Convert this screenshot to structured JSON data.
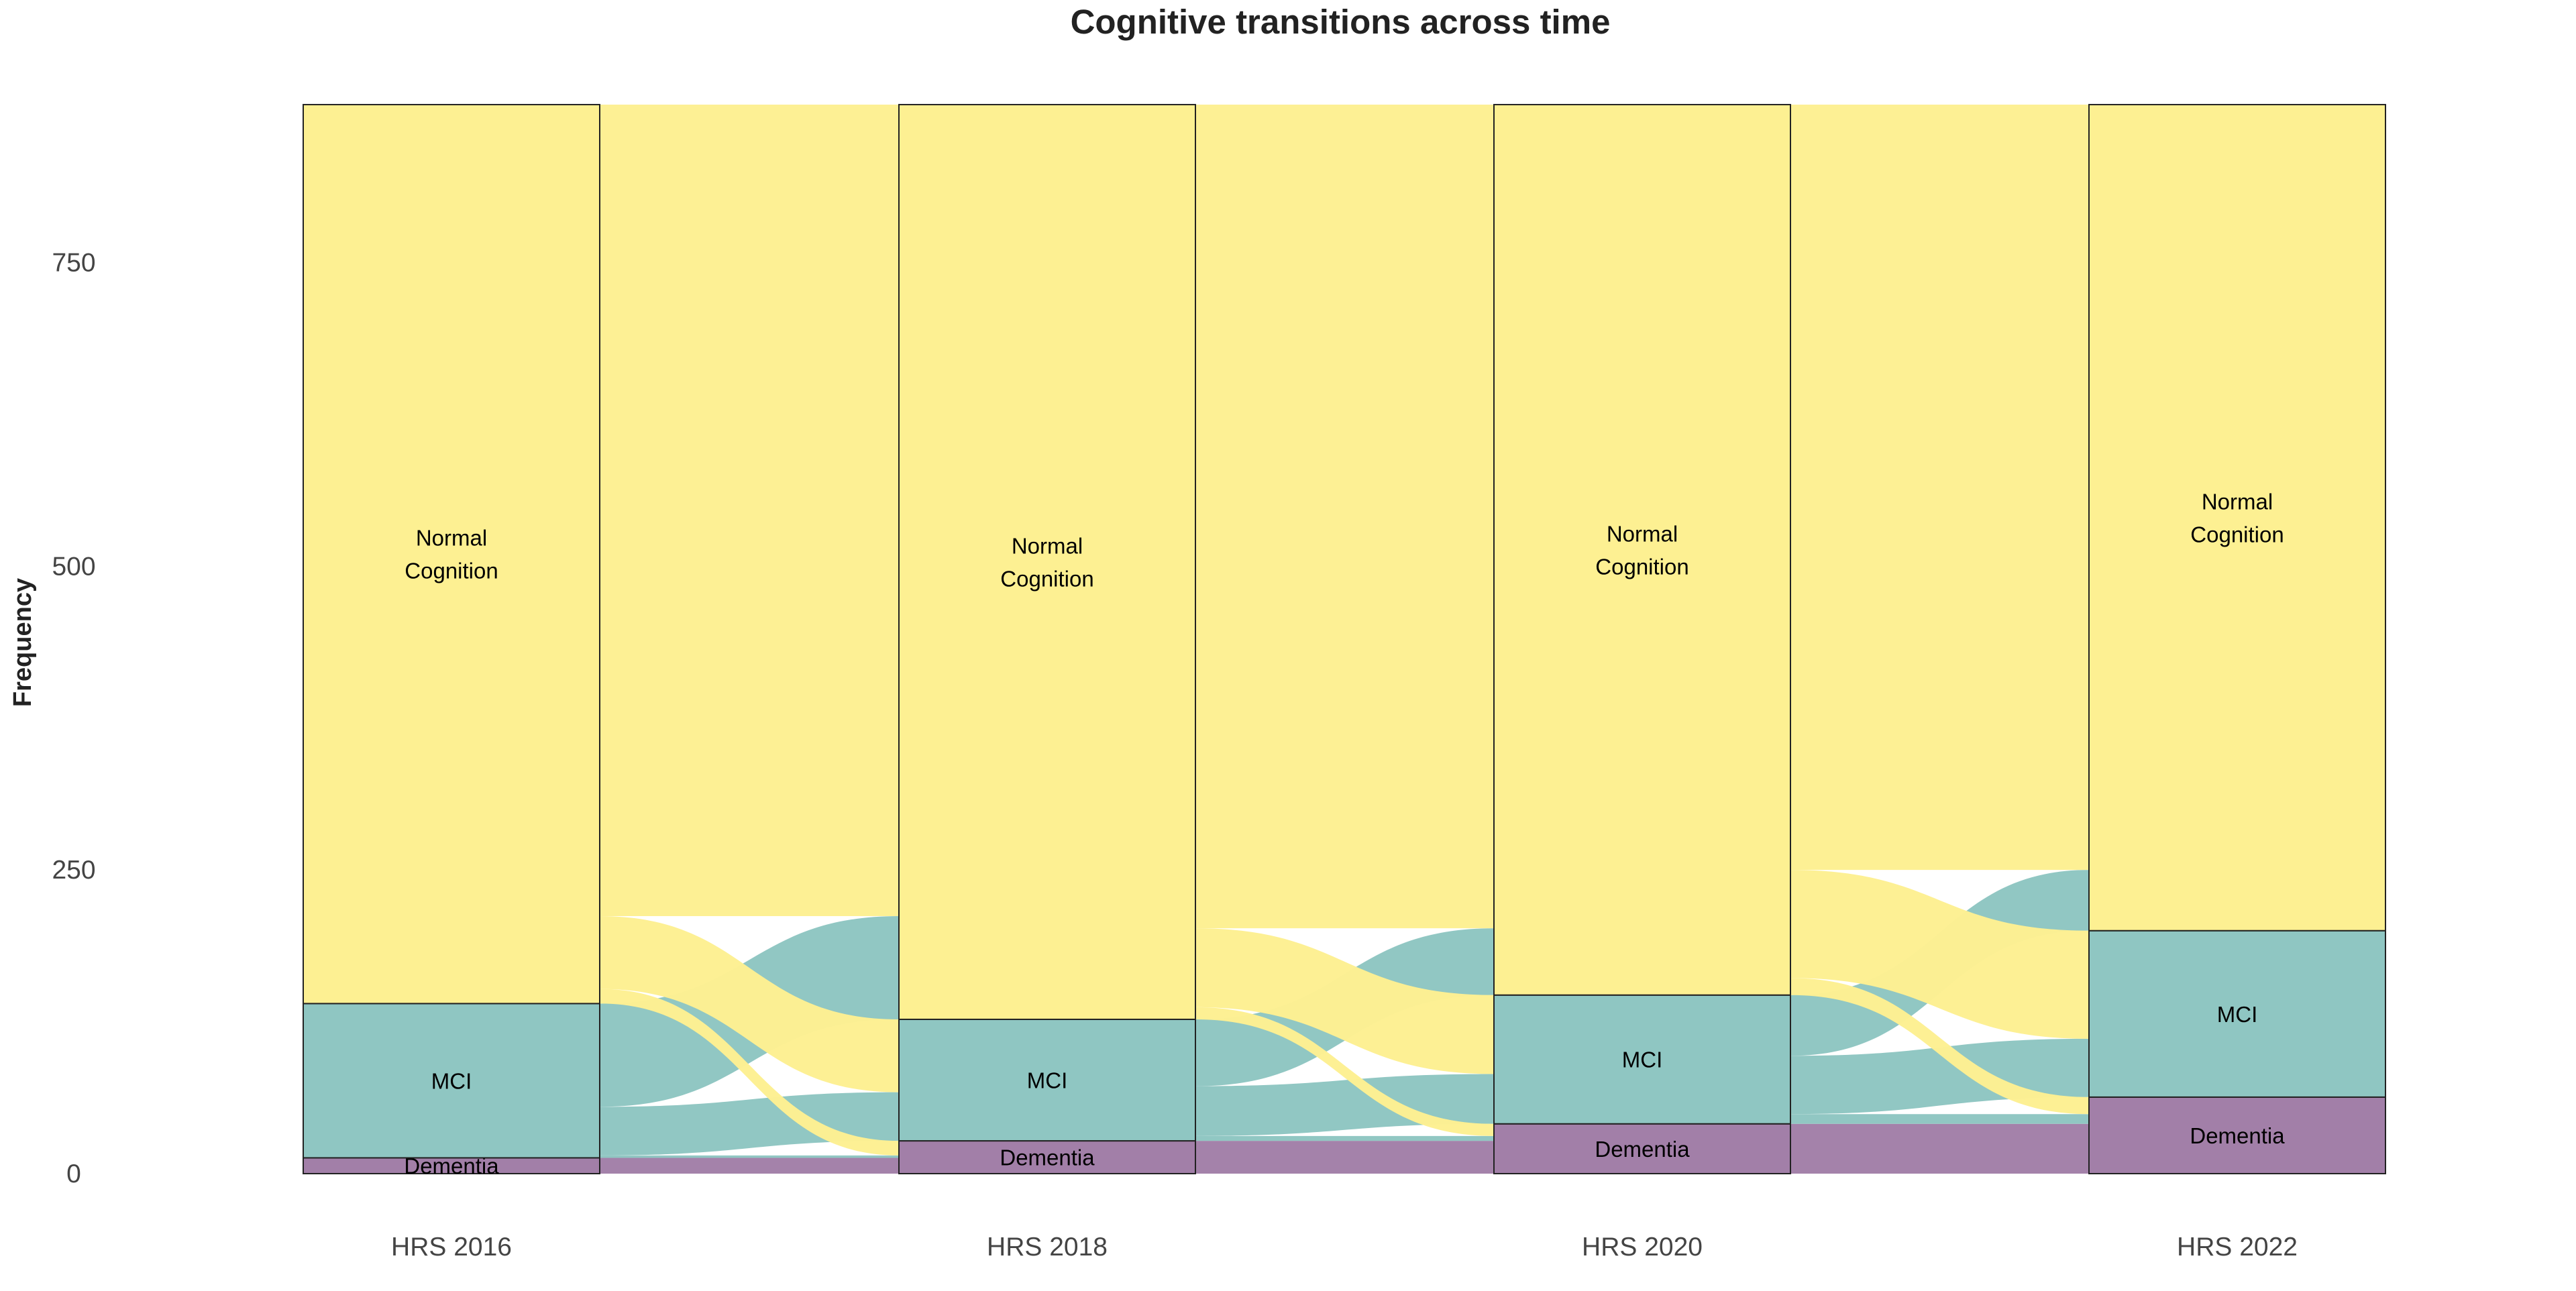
{
  "chart_data": {
    "type": "alluvial",
    "title": "Cognitive transitions across time",
    "xlabel": "",
    "ylabel": "Frequency",
    "ylim": [
      0,
      880
    ],
    "yticks": [
      0,
      250,
      500,
      750
    ],
    "grid": false,
    "legend": "none",
    "categories": [
      "Dementia",
      "MCI",
      "Normal Cognition"
    ],
    "category_labels": {
      "Dementia": "Dementia",
      "MCI": "MCI",
      "Normal Cognition": "Normal\nCognition"
    },
    "colors": {
      "Dementia": "#a27fa8",
      "MCI": "#8fc6c2",
      "Normal Cognition": "#fdf092"
    },
    "waves": [
      "HRS 2016",
      "HRS 2018",
      "HRS 2020",
      "HRS 2022"
    ],
    "strata": [
      {
        "Dementia": 13,
        "MCI": 127,
        "Normal Cognition": 740
      },
      {
        "Dementia": 27,
        "MCI": 100,
        "Normal Cognition": 753
      },
      {
        "Dementia": 41,
        "MCI": 106,
        "Normal Cognition": 733
      },
      {
        "Dementia": 63,
        "MCI": 137,
        "Normal Cognition": 680
      }
    ],
    "flows": [
      [
        {
          "from": "Dementia",
          "to": "Dementia",
          "value": 13
        },
        {
          "from": "MCI",
          "to": "Dementia",
          "value": 2
        },
        {
          "from": "MCI",
          "to": "MCI",
          "value": 40
        },
        {
          "from": "MCI",
          "to": "Normal Cognition",
          "value": 85
        },
        {
          "from": "Normal Cognition",
          "to": "Dementia",
          "value": 12
        },
        {
          "from": "Normal Cognition",
          "to": "MCI",
          "value": 60
        },
        {
          "from": "Normal Cognition",
          "to": "Normal Cognition",
          "value": 668
        }
      ],
      [
        {
          "from": "Dementia",
          "to": "Dementia",
          "value": 27
        },
        {
          "from": "MCI",
          "to": "Dementia",
          "value": 4
        },
        {
          "from": "MCI",
          "to": "MCI",
          "value": 41
        },
        {
          "from": "MCI",
          "to": "Normal Cognition",
          "value": 55
        },
        {
          "from": "Normal Cognition",
          "to": "Dementia",
          "value": 10
        },
        {
          "from": "Normal Cognition",
          "to": "MCI",
          "value": 65
        },
        {
          "from": "Normal Cognition",
          "to": "Normal Cognition",
          "value": 678
        }
      ],
      [
        {
          "from": "Dementia",
          "to": "Dementia",
          "value": 41
        },
        {
          "from": "MCI",
          "to": "Dementia",
          "value": 8
        },
        {
          "from": "MCI",
          "to": "MCI",
          "value": 48
        },
        {
          "from": "MCI",
          "to": "Normal Cognition",
          "value": 50
        },
        {
          "from": "Normal Cognition",
          "to": "Dementia",
          "value": 14
        },
        {
          "from": "Normal Cognition",
          "to": "MCI",
          "value": 89
        },
        {
          "from": "Normal Cognition",
          "to": "Normal Cognition",
          "value": 630
        }
      ]
    ]
  }
}
